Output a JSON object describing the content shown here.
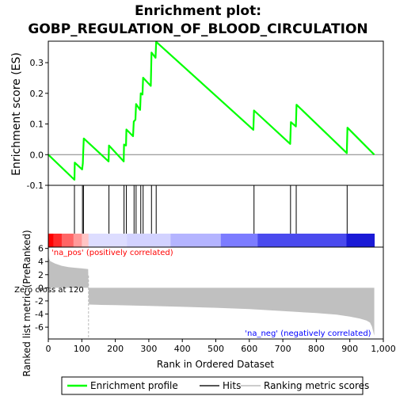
{
  "chart_data": {
    "type": "line",
    "title": "Enrichment plot:",
    "subtitle": "GOBP_REGULATION_OF_BLOOD_CIRCULATION",
    "es_panel": {
      "ylabel": "Enrichment score (ES)",
      "ylim": [
        -0.1,
        0.37
      ],
      "yticks": [
        -0.1,
        0.0,
        0.1,
        0.2,
        0.3
      ],
      "ytick_labels": [
        "-0.1",
        "0.0",
        "0.1",
        "0.2",
        "0.3"
      ],
      "profile": {
        "name": "Enrichment profile",
        "color": "#00ff00",
        "x": [
          0,
          78,
          79,
          101,
          103,
          104,
          106,
          180,
          181,
          225,
          226,
          232,
          233,
          253,
          255,
          260,
          262,
          274,
          276,
          281,
          283,
          306,
          308,
          320,
          322,
          612,
          614,
          722,
          724,
          739,
          741,
          891,
          893,
          973
        ],
        "y": [
          0.0,
          -0.082,
          -0.026,
          -0.048,
          -0.028,
          0.003,
          0.053,
          -0.022,
          0.03,
          -0.022,
          0.033,
          0.03,
          0.082,
          0.06,
          0.108,
          0.114,
          0.165,
          0.146,
          0.2,
          0.196,
          0.251,
          0.224,
          0.333,
          0.316,
          0.368,
          0.081,
          0.144,
          0.035,
          0.106,
          0.092,
          0.163,
          0.005,
          0.088,
          0.0
        ]
      }
    },
    "hits": {
      "name": "Hits",
      "positions": [
        78,
        102,
        105,
        181,
        226,
        233,
        256,
        262,
        276,
        283,
        308,
        322,
        614,
        723,
        740,
        892
      ]
    },
    "ranked_metric": {
      "name": "Ranking metric scores",
      "ylabel": "Ranked list metric (PreRanked)",
      "xlabel": "Rank in Ordered Dataset",
      "ylim": [
        -7.8,
        6.2
      ],
      "yticks": [
        -6,
        -4,
        -2,
        0,
        2,
        4,
        6
      ],
      "ytick_labels": [
        "-6",
        "-4",
        "-2",
        "0",
        "2",
        "4",
        "6"
      ],
      "xlim": [
        0,
        1000
      ],
      "xticks": [
        0,
        100,
        200,
        300,
        400,
        500,
        600,
        700,
        800,
        900,
        1000
      ],
      "xtick_labels": [
        "0",
        "100",
        "200",
        "300",
        "400",
        "500",
        "600",
        "700",
        "800",
        "900",
        "1,000"
      ],
      "n_genes": 973,
      "zero_cross": 120,
      "zero_cross_label": "Zero cross at 120",
      "pos_label": "'na_pos' (positively correlated)",
      "neg_label": "'na_neg' (negatively correlated)",
      "pos_color": "#ff0000",
      "neg_color": "#0000ff",
      "curve_x": [
        0,
        2,
        5,
        10,
        20,
        40,
        60,
        80,
        100,
        119,
        120,
        121,
        150,
        200,
        300,
        400,
        500,
        600,
        700,
        800,
        860,
        900,
        930,
        950,
        960,
        966,
        970,
        973
      ],
      "curve_y": [
        5.5,
        4.5,
        4.1,
        3.95,
        3.7,
        3.35,
        3.15,
        3.05,
        2.95,
        2.85,
        0.0,
        -2.55,
        -2.6,
        -2.65,
        -2.75,
        -2.9,
        -3.05,
        -3.25,
        -3.55,
        -3.85,
        -4.1,
        -4.4,
        -4.7,
        -5.0,
        -5.3,
        -5.9,
        -6.7,
        -7.3
      ]
    },
    "legend": {
      "position": "bottom",
      "entries": [
        "Enrichment profile",
        "Hits",
        "Ranking metric scores"
      ]
    }
  }
}
